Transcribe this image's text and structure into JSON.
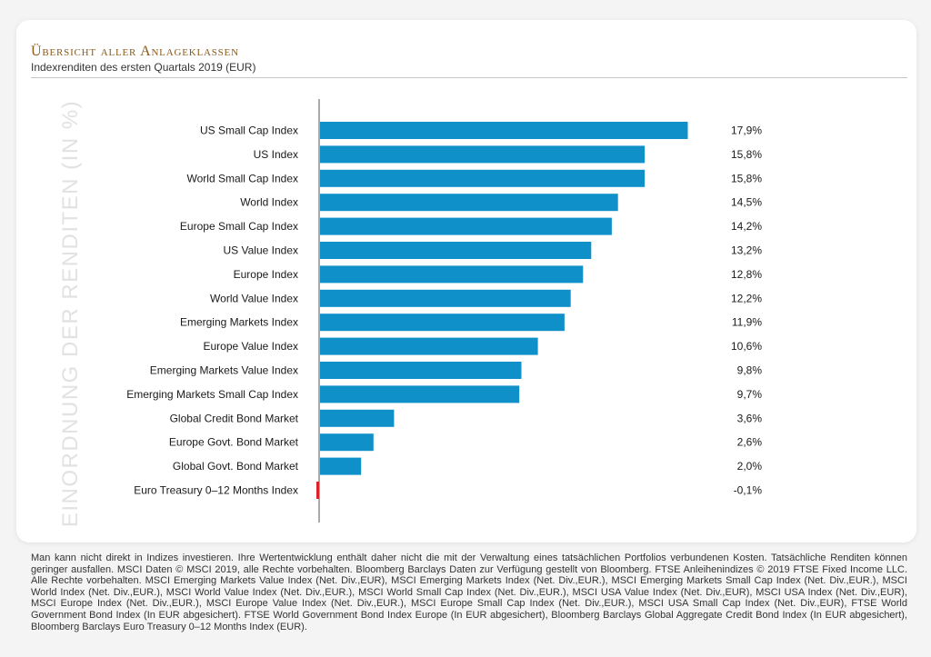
{
  "header": {
    "title": "Übersicht aller Anlageklassen",
    "subtitle": "Indexrenditen des ersten Quartals 2019 (EUR)"
  },
  "chart_data": {
    "type": "bar",
    "orientation": "horizontal",
    "axis_label": "EINORDNUNG DER RENDITEN (IN %)",
    "categories": [
      "US Small Cap Index",
      "US Index",
      "World Small Cap Index",
      "World Index",
      "Europe Small Cap Index",
      "US Value Index",
      "Europe Index",
      "World Value Index",
      "Emerging Markets Index",
      "Europe Value Index",
      "Emerging Markets Value Index",
      "Emerging Markets Small Cap Index",
      "Global Credit Bond Market",
      "Europe Govt. Bond Market",
      "Global Govt. Bond Market",
      "Euro Treasury 0–12 Months Index"
    ],
    "values": [
      17.9,
      15.8,
      15.8,
      14.5,
      14.2,
      13.2,
      12.8,
      12.2,
      11.9,
      10.6,
      9.8,
      9.7,
      3.6,
      2.6,
      2.0,
      -0.1
    ],
    "value_labels": [
      "17,9%",
      "15,8%",
      "15,8%",
      "14,5%",
      "14,2%",
      "13,2%",
      "12,8%",
      "12,2%",
      "11,9%",
      "10,6%",
      "9,8%",
      "9,7%",
      "3,6%",
      "2,6%",
      "2,0%",
      "-0,1%"
    ],
    "colors": {
      "positive": "#1090c8",
      "negative": "#d8232a",
      "axis": "#555555"
    },
    "grid": false
  },
  "footnote": "Man kann nicht direkt in Indizes investieren. Ihre Wertentwicklung enthält daher nicht die mit der Verwaltung eines tatsächlichen Portfolios verbundenen Kosten. Tatsächliche Renditen können geringer ausfallen. MSCI Daten © MSCI 2019, alle Rechte vorbehalten. Bloomberg Barclays Daten zur Verfügung gestellt von Bloomberg. FTSE Anleihenindizes © 2019 FTSE Fixed Income LLC. Alle Rechte vorbehalten. MSCI Emerging Markets Value Index (Net. Div.,EUR), MSCI Emerging Markets Index (Net. Div.,EUR.), MSCI Emerging Markets Small Cap Index (Net. Div.,EUR.), MSCI World Index (Net. Div.,EUR.), MSCI World Value Index (Net. Div.,EUR.), MSCI World Small Cap Index (Net. Div.,EUR.), MSCI USA Value Index (Net. Div.,EUR), MSCI USA Index (Net. Div.,EUR), MSCI Europe Index (Net. Div.,EUR.), MSCI Europe Value Index (Net. Div.,EUR.), MSCI Europe Small Cap Index (Net. Div.,EUR.), MSCI USA Small Cap Index (Net. Div.,EUR), FTSE World Government Bond Index (In EUR abgesichert). FTSE World Government Bond Index Europe (In EUR abgesichert), Bloomberg Barclays Global Aggregate Credit Bond Index (In EUR abgesichert), Bloomberg Barclays Euro Treasury 0–12 Months Index (EUR)."
}
